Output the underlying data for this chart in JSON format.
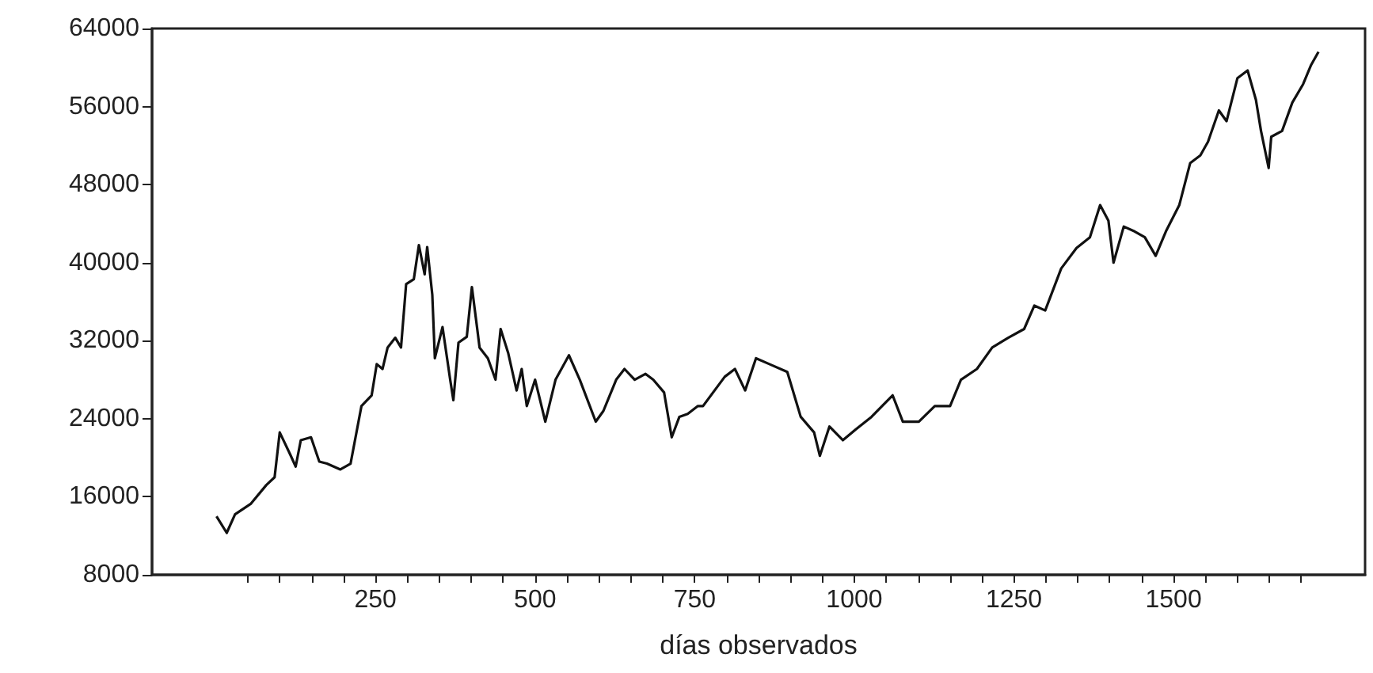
{
  "chart_data": {
    "type": "line",
    "xlabel": "días observados",
    "x": [
      1,
      17,
      30,
      55,
      79,
      92,
      100,
      116,
      125,
      133,
      149,
      162,
      174,
      195,
      211,
      228,
      244,
      252,
      261,
      269,
      281,
      290,
      298,
      310,
      318,
      327,
      331,
      339,
      343,
      355,
      367,
      372,
      380,
      393,
      401,
      409,
      413,
      426,
      438,
      446,
      458,
      471,
      479,
      487,
      500,
      516,
      532,
      553,
      570,
      595,
      607,
      627,
      640,
      656,
      673,
      685,
      702,
      714,
      726,
      739,
      755,
      763,
      797,
      813,
      829,
      846,
      867,
      895,
      916,
      937,
      946,
      961,
      982,
      1002,
      1027,
      1060,
      1076,
      1101,
      1126,
      1150,
      1167,
      1192,
      1216,
      1241,
      1266,
      1282,
      1299,
      1324,
      1348,
      1369,
      1385,
      1398,
      1406,
      1422,
      1439,
      1455,
      1472,
      1488,
      1509,
      1526,
      1542,
      1554,
      1571,
      1583,
      1600,
      1616,
      1629,
      1637,
      1649,
      1653,
      1670,
      1686,
      1703,
      1715,
      1727
    ],
    "series": [
      {
        "color": "#111111",
        "values": [
          14000,
          12300,
          14200,
          15300,
          17200,
          18000,
          22600,
          20400,
          19100,
          21800,
          22100,
          19600,
          19400,
          18800,
          19400,
          25300,
          26400,
          29600,
          29100,
          31300,
          32300,
          31300,
          37800,
          38300,
          41800,
          38800,
          41600,
          36700,
          30200,
          33400,
          28000,
          25900,
          31800,
          32400,
          37500,
          33400,
          31300,
          30200,
          28000,
          33200,
          30700,
          26900,
          29100,
          25300,
          28000,
          23700,
          28000,
          30500,
          28000,
          23700,
          24800,
          28000,
          29100,
          28000,
          28600,
          28000,
          26700,
          22100,
          24200,
          24500,
          25300,
          25300,
          28300,
          29100,
          26900,
          30200,
          29600,
          28800,
          24200,
          22600,
          20200,
          23200,
          21800,
          22900,
          24200,
          26400,
          23700,
          23700,
          25300,
          25300,
          28000,
          29100,
          31300,
          32300,
          33200,
          35600,
          35100,
          39400,
          41500,
          42600,
          45900,
          44300,
          40000,
          43700,
          43200,
          42600,
          40700,
          43200,
          45900,
          50200,
          51000,
          52400,
          55600,
          54500,
          58900,
          59700,
          56700,
          53500,
          49700,
          52900,
          53500,
          56400,
          58300,
          60200,
          61600
        ]
      }
    ],
    "xlim": [
      -100,
      1800
    ],
    "xticks": [
      {
        "value": 50,
        "label": null
      },
      {
        "value": 100,
        "label": null
      },
      {
        "value": 150,
        "label": null
      },
      {
        "value": 200,
        "label": null
      },
      250,
      {
        "value": 300,
        "label": null
      },
      {
        "value": 350,
        "label": null
      },
      {
        "value": 400,
        "label": null
      },
      {
        "value": 450,
        "label": null
      },
      500,
      {
        "value": 550,
        "label": null
      },
      {
        "value": 600,
        "label": null
      },
      {
        "value": 650,
        "label": null
      },
      {
        "value": 700,
        "label": null
      },
      750,
      {
        "value": 800,
        "label": null
      },
      {
        "value": 850,
        "label": null
      },
      {
        "value": 900,
        "label": null
      },
      {
        "value": 950,
        "label": null
      },
      1000,
      {
        "value": 1050,
        "label": null
      },
      {
        "value": 1100,
        "label": null
      },
      {
        "value": 1150,
        "label": null
      },
      {
        "value": 1200,
        "label": null
      },
      1250,
      {
        "value": 1300,
        "label": null
      },
      {
        "value": 1350,
        "label": null
      },
      {
        "value": 1400,
        "label": null
      },
      {
        "value": 1450,
        "label": null
      },
      1500,
      {
        "value": 1550,
        "label": null
      },
      {
        "value": 1600,
        "label": null
      },
      {
        "value": 1650,
        "label": null
      },
      {
        "value": 1700,
        "label": null
      }
    ],
    "ylim": [
      8000,
      64000
    ],
    "yticks": [
      8000,
      16000,
      24000,
      32000,
      40000,
      48000,
      56000,
      64000
    ],
    "grid": false,
    "marker": "none",
    "line_style": "solid"
  }
}
